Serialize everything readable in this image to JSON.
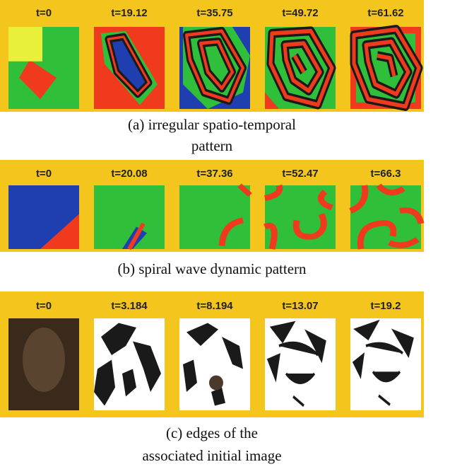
{
  "figures": [
    {
      "times": [
        "t=0",
        "t=19.12",
        "t=35.75",
        "t=49.72",
        "t=61.62"
      ],
      "caption": [
        "(a) irregular spatio-temporal",
        "pattern"
      ]
    },
    {
      "times": [
        "t=0",
        "t=20.08",
        "t=37.36",
        "t=52.47",
        "t=66.3"
      ],
      "caption": [
        "(b) spiral wave dynamic pattern"
      ]
    },
    {
      "times": [
        "t=0",
        "t=3.184",
        "t=8.194",
        "t=13.07",
        "t=19.2"
      ],
      "caption": [
        "(c) edges of the",
        "associated initial image"
      ]
    }
  ]
}
